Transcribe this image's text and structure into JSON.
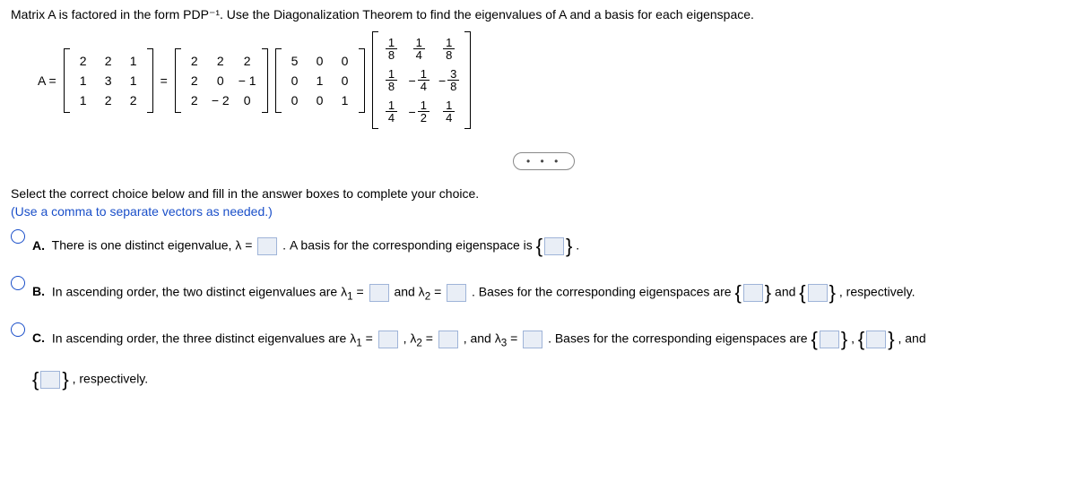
{
  "prompt": "Matrix A is factored in the form PDP⁻¹. Use the Diagonalization Theorem to find the eigenvalues of A and a basis for each eigenspace.",
  "eq": {
    "lhs": "A =",
    "equals": "=",
    "A": [
      [
        "2",
        "2",
        "1"
      ],
      [
        "1",
        "3",
        "1"
      ],
      [
        "1",
        "2",
        "2"
      ]
    ],
    "P": [
      [
        "2",
        "2",
        "2"
      ],
      [
        "2",
        "0",
        "− 1"
      ],
      [
        "2",
        "− 2",
        "0"
      ]
    ],
    "D": [
      [
        "5",
        "0",
        "0"
      ],
      [
        "0",
        "1",
        "0"
      ],
      [
        "0",
        "0",
        "1"
      ]
    ],
    "Pinv": [
      [
        {
          "n": "1",
          "d": "8"
        },
        {
          "n": "1",
          "d": "4"
        },
        {
          "n": "1",
          "d": "8"
        }
      ],
      [
        {
          "n": "1",
          "d": "8"
        },
        {
          "n": "1",
          "d": "4",
          "neg": true
        },
        {
          "n": "3",
          "d": "8",
          "neg": true
        }
      ],
      [
        {
          "n": "1",
          "d": "4"
        },
        {
          "n": "1",
          "d": "2",
          "neg": true
        },
        {
          "n": "1",
          "d": "4"
        }
      ]
    ]
  },
  "dots": "• • •",
  "instr1": "Select the correct choice below and fill in the answer boxes to complete your choice.",
  "instr2": "(Use a comma to separate vectors as needed.)",
  "choices": {
    "A": {
      "label": "A.",
      "t1": "There is one distinct eigenvalue, λ =",
      "t2": ". A basis for the corresponding eigenspace is ",
      "t3": "."
    },
    "B": {
      "label": "B.",
      "t1": "In ascending order, the two distinct eigenvalues are λ",
      "sub1": "1",
      "t2": " = ",
      "t3": " and λ",
      "sub2": "2",
      "t4": " = ",
      "t5": ". Bases for the corresponding eigenspaces are ",
      "t6": " and ",
      "t7": ", respectively."
    },
    "C": {
      "label": "C.",
      "t1": "In ascending order, the three distinct eigenvalues are λ",
      "sub1": "1",
      "t2": " = ",
      "t3": ", λ",
      "sub2": "2",
      "t4": " = ",
      "t5": ", and λ",
      "sub3": "3",
      "t6": " = ",
      "t7": ". Bases for the corresponding eigenspaces are ",
      "t8": ", ",
      "t9": ", and",
      "t10": ", respectively."
    }
  },
  "style": {
    "text_color": "#000000",
    "blue": "#1a4fc9",
    "box_bg": "#e9eef6",
    "box_border": "#9fb4d8",
    "font_size_pt": 10.5
  }
}
